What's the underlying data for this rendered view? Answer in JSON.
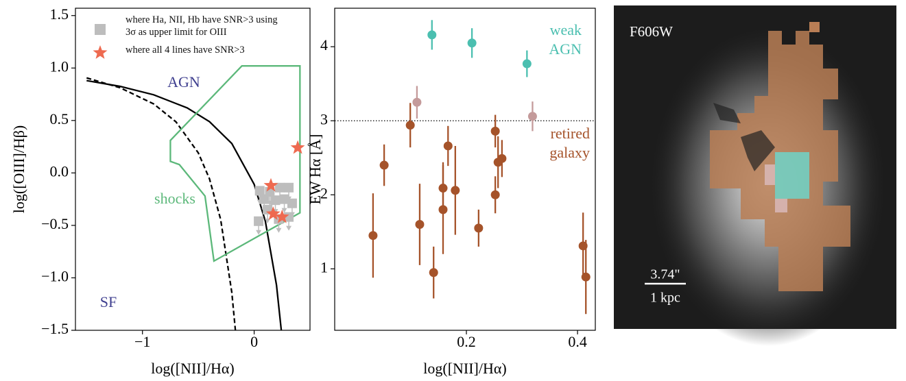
{
  "chart_data": [
    {
      "type": "scatter",
      "xlabel": "log([NII]/Hα)",
      "ylabel": "log([OIII]/Hβ)",
      "xlim": [
        -1.6,
        0.5
      ],
      "ylim": [
        -1.5,
        1.57
      ],
      "xticks": [
        {
          "value": -1,
          "label": "−1"
        },
        0
      ],
      "yticks": [
        {
          "value": -1.5,
          "label": "−1.5"
        },
        {
          "value": -1,
          "label": "−1.0"
        },
        {
          "value": -0.5,
          "label": "−0.5"
        },
        {
          "value": 0,
          "label": "0.0"
        },
        0.5,
        {
          "value": 1,
          "label": "1.0"
        },
        1.5
      ],
      "lines": [
        {
          "color": "#000000",
          "style": "solid",
          "x": [
            -1.5,
            -1.2,
            -0.9,
            -0.6,
            -0.4,
            -0.2,
            0,
            0.1,
            0.2,
            0.243
          ],
          "values": [
            0.88,
            0.825,
            0.745,
            0.62,
            0.489,
            0.28,
            -0.108,
            -0.459,
            -1.069,
            -1.5
          ]
        },
        {
          "color": "#000000",
          "style": "dashed",
          "x": [
            -1.5,
            -1.2,
            -0.9,
            -0.7,
            -0.5,
            -0.4,
            -0.3,
            -0.2,
            -0.168
          ],
          "values": [
            0.906,
            0.812,
            0.658,
            0.487,
            0.191,
            -0.056,
            -0.443,
            -1.14,
            -1.5
          ]
        },
        {
          "color": "#5cb87a",
          "style": "solid",
          "closed": true,
          "x": [
            -0.11,
            0.41,
            0.41,
            -0.36,
            -0.44,
            -0.67,
            -0.75,
            -0.75
          ],
          "values": [
            1.02,
            1.02,
            -0.38,
            -0.84,
            -0.22,
            0.08,
            0.11,
            0.31
          ]
        }
      ],
      "series": [
        {
          "name": "where Ha, NII, Hb have SNR>3 using 3σ as upper limit for OIII",
          "color": "#bdbdbd",
          "marker": "square",
          "upper_limit": true,
          "x": [
            0.05,
            0.14,
            0.23,
            0.31,
            0.09,
            0.19,
            0.27,
            0.34,
            0.04,
            0.12,
            0.22,
            0.31
          ],
          "values": [
            -0.17,
            -0.18,
            -0.14,
            -0.14,
            -0.25,
            -0.26,
            -0.25,
            -0.29,
            -0.46,
            -0.35,
            -0.44,
            -0.42
          ]
        },
        {
          "name": "where all 4 lines have SNR>3",
          "color": "#ee6a50",
          "marker": "star",
          "x": [
            0.15,
            0.17,
            0.25,
            0.39
          ],
          "values": [
            -0.12,
            -0.39,
            -0.42,
            0.24
          ]
        }
      ],
      "annotations": [
        {
          "text": "AGN",
          "color": "#3f3f8f"
        },
        {
          "text": "SF",
          "color": "#3f3f8f"
        },
        {
          "text": "shocks",
          "color": "#5cb87a"
        }
      ],
      "legend": "upper right"
    },
    {
      "type": "errorbar",
      "xlabel": "log([NII]/Hα)",
      "ylabel": "EW Hα [Å]",
      "xlim": [
        -0.037,
        0.432
      ],
      "ylim": [
        0.17,
        4.52
      ],
      "xticks": [
        0.2,
        0.4
      ],
      "yticks": [
        1,
        2,
        3,
        4
      ],
      "hline": 3,
      "series": [
        {
          "color": "#4bbfb0",
          "x": [
            0.138,
            0.21,
            0.309
          ],
          "values": [
            4.16,
            4.05,
            3.77
          ],
          "errors": [
            0.2,
            0.2,
            0.18
          ]
        },
        {
          "color": "#c49a9a",
          "x": [
            0.111,
            0.319
          ],
          "values": [
            3.25,
            3.06
          ],
          "errors": [
            0.22,
            0.2
          ]
        },
        {
          "color": "#a5532a",
          "x": [
            0.032,
            0.052,
            0.099,
            0.116,
            0.141,
            0.158,
            0.158,
            0.167,
            0.18,
            0.222,
            0.252,
            0.252,
            0.257,
            0.264,
            0.41,
            0.415
          ],
          "values": [
            1.45,
            2.4,
            2.94,
            1.6,
            0.95,
            2.09,
            1.8,
            2.66,
            2.06,
            1.55,
            2.86,
            2.0,
            2.44,
            2.49,
            1.31,
            0.89
          ],
          "errors": [
            0.57,
            0.28,
            0.3,
            0.55,
            0.35,
            0.35,
            0.6,
            0.27,
            0.6,
            0.25,
            0.22,
            0.25,
            0.35,
            0.25,
            0.45,
            0.5
          ]
        }
      ],
      "annotations": [
        {
          "text": [
            "weak",
            "AGN"
          ],
          "color": "#4bbfb0"
        },
        {
          "text": [
            "retired",
            "galaxy"
          ],
          "color": "#a5532a"
        }
      ]
    },
    {
      "type": "image",
      "title": "F606W",
      "scalebar": [
        "3.74\"",
        "1 kpc"
      ]
    }
  ]
}
